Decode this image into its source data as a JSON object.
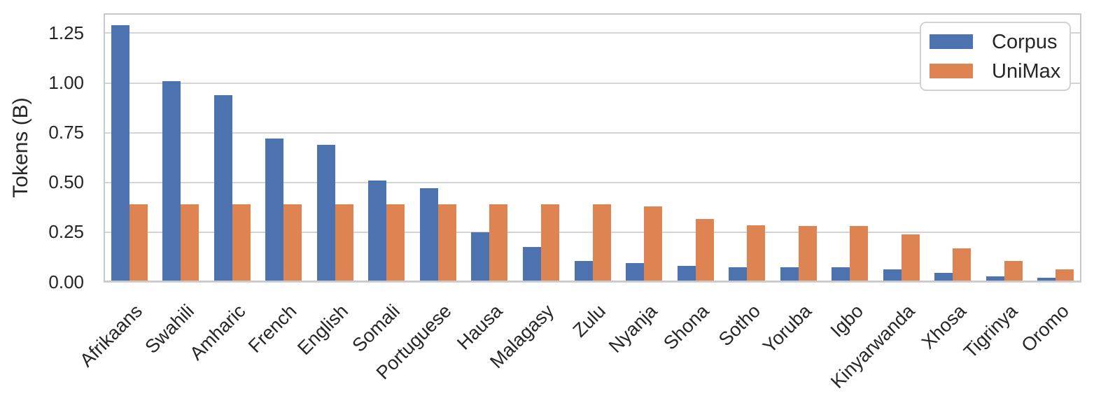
{
  "chart_data": {
    "type": "bar",
    "title": "",
    "xlabel": "",
    "ylabel": "Tokens (B)",
    "categories": [
      "Afrikaans",
      "Swahili",
      "Amharic",
      "French",
      "English",
      "Somali",
      "Portuguese",
      "Hausa",
      "Malagasy",
      "Zulu",
      "Nyanja",
      "Shona",
      "Sotho",
      "Yoruba",
      "Igbo",
      "Kinyarwanda",
      "Xhosa",
      "Tigrinya",
      "Oromo"
    ],
    "series": [
      {
        "name": "Corpus",
        "color": "#4C72B0",
        "values": [
          1.29,
          1.01,
          0.94,
          0.72,
          0.69,
          0.51,
          0.47,
          0.25,
          0.175,
          0.105,
          0.095,
          0.08,
          0.075,
          0.075,
          0.075,
          0.065,
          0.045,
          0.03,
          0.02
        ]
      },
      {
        "name": "UniMax",
        "color": "#DD8452",
        "values": [
          0.39,
          0.39,
          0.39,
          0.39,
          0.39,
          0.39,
          0.39,
          0.39,
          0.39,
          0.39,
          0.38,
          0.315,
          0.285,
          0.28,
          0.28,
          0.24,
          0.17,
          0.105,
          0.065
        ]
      }
    ],
    "ylim": [
      0,
      1.35
    ],
    "yticks": [
      0,
      0.25,
      0.5,
      0.75,
      1.0,
      1.25
    ],
    "ytick_labels": [
      "0.00",
      "0.25",
      "0.50",
      "0.75",
      "1.00",
      "1.25"
    ],
    "grid": "horizontal",
    "legend_position": "upper right",
    "x_label_rotation_deg": 45
  }
}
